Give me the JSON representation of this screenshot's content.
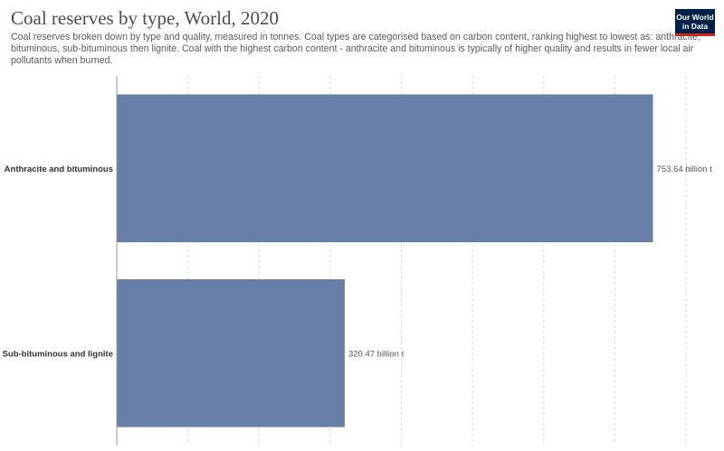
{
  "header": {
    "title": "Coal reserves by type, World, 2020",
    "subtitle": "Coal reserves broken down by type and quality, measured in tonnes. Coal types are categorised based on carbon content, ranking highest to lowest as: anthracite, bituminous, sub-bituminous then lignite. Coal with the highest carbon content - anthracite and bituminous is typically of higher quality and results in fewer local air pollutants when burned."
  },
  "logo": {
    "line1": "Our World",
    "line2": "in Data"
  },
  "chart_data": {
    "type": "bar",
    "orientation": "horizontal",
    "title": "Coal reserves by type, World, 2020",
    "categories": [
      "Anthracite and bituminous",
      "Sub-bituminous and lignite"
    ],
    "values": [
      753.64,
      320.47
    ],
    "value_labels": [
      "753.64 billion t",
      "320.47 billion t"
    ],
    "unit": "billion t",
    "xlim": [
      0,
      800
    ],
    "gridlines": [
      0,
      100,
      200,
      300,
      400,
      500,
      600,
      700,
      800
    ],
    "grid": true,
    "bar_color": "#6a7fa8"
  }
}
